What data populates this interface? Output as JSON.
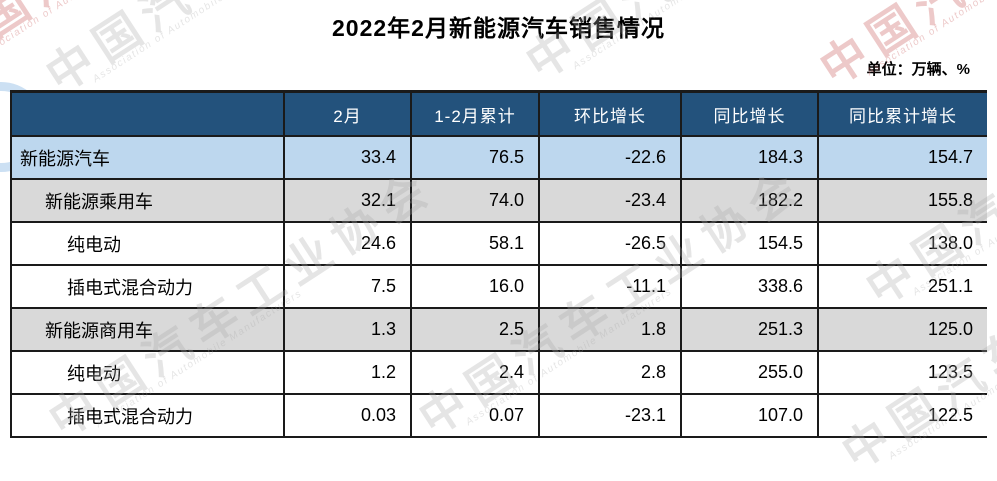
{
  "title": "2022年2月新能源汽车销售情况",
  "unit_label": "单位：万辆、%",
  "watermark": {
    "cn": "中国汽车工业协会",
    "en": "Association of Automobile Manufacturers"
  },
  "colors": {
    "header_bg": "#23527C",
    "row_blue": "#BDD7EE",
    "row_gray": "#D9D9D9",
    "border": "#1A1A1A"
  },
  "table": {
    "columns": [
      "",
      "2月",
      "1-2月累计",
      "环比增长",
      "同比增长",
      "同比累计增长"
    ],
    "rows": [
      {
        "label": "新能源汽车",
        "indent": 0,
        "bg": "blue",
        "values": [
          "33.4",
          "76.5",
          "-22.6",
          "184.3",
          "154.7"
        ]
      },
      {
        "label": "新能源乘用车",
        "indent": 1,
        "bg": "gray",
        "values": [
          "32.1",
          "74.0",
          "-23.4",
          "182.2",
          "155.8"
        ]
      },
      {
        "label": "纯电动",
        "indent": 2,
        "bg": "white",
        "values": [
          "24.6",
          "58.1",
          "-26.5",
          "154.5",
          "138.0"
        ]
      },
      {
        "label": "插电式混合动力",
        "indent": 2,
        "bg": "white",
        "values": [
          "7.5",
          "16.0",
          "-11.1",
          "338.6",
          "251.1"
        ]
      },
      {
        "label": "新能源商用车",
        "indent": 1,
        "bg": "gray",
        "values": [
          "1.3",
          "2.5",
          "1.8",
          "251.3",
          "125.0"
        ]
      },
      {
        "label": "纯电动",
        "indent": 2,
        "bg": "white",
        "values": [
          "1.2",
          "2.4",
          "2.8",
          "255.0",
          "123.5"
        ]
      },
      {
        "label": "插电式混合动力",
        "indent": 2,
        "bg": "white",
        "values": [
          "0.03",
          "0.07",
          "-23.1",
          "107.0",
          "122.5"
        ]
      }
    ]
  }
}
